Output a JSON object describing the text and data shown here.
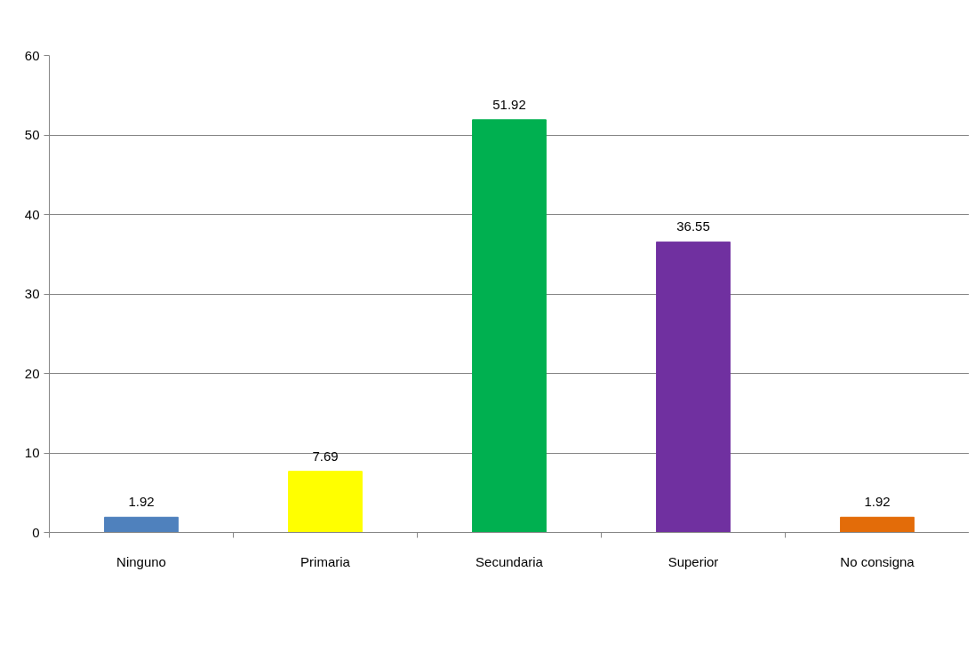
{
  "chart_data": {
    "type": "bar",
    "categories": [
      "Ninguno",
      "Primaria",
      "Secundaria",
      "Superior",
      "No consigna"
    ],
    "values": [
      1.92,
      7.69,
      51.92,
      36.55,
      1.92
    ],
    "colors": [
      "#4f81bd",
      "#ffff00",
      "#00b050",
      "#7030a0",
      "#e36c09"
    ],
    "ylim": [
      0,
      60
    ],
    "yticks": [
      0,
      10,
      20,
      30,
      40,
      50,
      60
    ],
    "grid": "y",
    "data_labels": true
  }
}
